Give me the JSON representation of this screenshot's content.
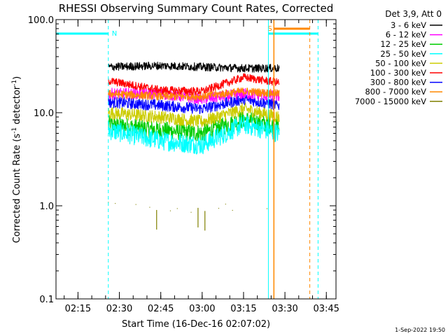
{
  "chart_data": {
    "type": "line",
    "title": "RHESSI Observing Summary Count Rates, Corrected",
    "xlabel": "Start Time (16-Dec-16 02:07:02)",
    "ylabel": "Corrected Count Rate (s",
    "ylabel_sup": "-1",
    "ylabel_mid": " detector",
    "ylabel_end": ")",
    "y_scale": "log",
    "ylim": [
      0.1,
      100.0
    ],
    "xlim": [
      "02:07:02",
      "03:48:30"
    ],
    "x_ticks": [
      "02:15",
      "02:30",
      "02:45",
      "03:00",
      "03:15",
      "03:30",
      "03:45"
    ],
    "y_ticks": [
      "0.1",
      "1.0",
      "10.0",
      "100.0"
    ],
    "legend_title": "Det 3,9, Att 0",
    "legend_position": "right",
    "data_window": [
      "02:26",
      "03:28"
    ],
    "series": [
      {
        "name": "3 - 6 keV",
        "color": "#000000",
        "values": [
          [
            "02:26",
            31
          ],
          [
            "02:45",
            32
          ],
          [
            "03:00",
            31
          ],
          [
            "03:15",
            30
          ],
          [
            "03:28",
            30
          ]
        ]
      },
      {
        "name": "6 - 12 keV",
        "color": "#ff00ff",
        "values": [
          [
            "02:26",
            16
          ],
          [
            "02:45",
            16
          ],
          [
            "03:00",
            14
          ],
          [
            "03:15",
            16
          ],
          [
            "03:28",
            15
          ]
        ]
      },
      {
        "name": "12 - 25 keV",
        "color": "#00cc00",
        "values": [
          [
            "02:26",
            7.5
          ],
          [
            "02:45",
            6.5
          ],
          [
            "03:00",
            6
          ],
          [
            "03:15",
            8.5
          ],
          [
            "03:28",
            7
          ]
        ]
      },
      {
        "name": "25 - 50 keV",
        "color": "#00ffff",
        "values": [
          [
            "02:26",
            6.5
          ],
          [
            "02:45",
            5
          ],
          [
            "03:00",
            4.5
          ],
          [
            "03:15",
            7.5
          ],
          [
            "03:28",
            6
          ]
        ]
      },
      {
        "name": "50 - 100 keV",
        "color": "#cccc00",
        "values": [
          [
            "02:26",
            10
          ],
          [
            "02:45",
            9
          ],
          [
            "03:00",
            8
          ],
          [
            "03:15",
            11
          ],
          [
            "03:28",
            9
          ]
        ]
      },
      {
        "name": "100 - 300 keV",
        "color": "#ff0000",
        "values": [
          [
            "02:26",
            22
          ],
          [
            "02:45",
            17.5
          ],
          [
            "03:00",
            17
          ],
          [
            "03:15",
            24
          ],
          [
            "03:28",
            21
          ]
        ]
      },
      {
        "name": "300 - 800 keV",
        "color": "#0000ff",
        "values": [
          [
            "02:26",
            13
          ],
          [
            "02:45",
            12
          ],
          [
            "03:00",
            11
          ],
          [
            "03:15",
            14
          ],
          [
            "03:28",
            12
          ]
        ]
      },
      {
        "name": "800 - 7000 keV",
        "color": "#ff8800",
        "values": [
          [
            "02:26",
            16
          ],
          [
            "02:45",
            15
          ],
          [
            "03:00",
            15
          ],
          [
            "03:15",
            17
          ],
          [
            "03:28",
            16
          ]
        ]
      },
      {
        "name": "7000 - 15000 keV",
        "color": "#808000",
        "values": [
          [
            "02:26",
            1.0
          ],
          [
            "02:45",
            1.0
          ],
          [
            "03:00",
            0.9
          ],
          [
            "03:15",
            1.0
          ],
          [
            "03:28",
            1.0
          ]
        ]
      }
    ],
    "annotations": [
      {
        "label": "N",
        "color": "#00ffff"
      },
      {
        "label": "S",
        "color": "#ff8800"
      }
    ],
    "timestamp": "1-Sep-2022 19:50"
  }
}
